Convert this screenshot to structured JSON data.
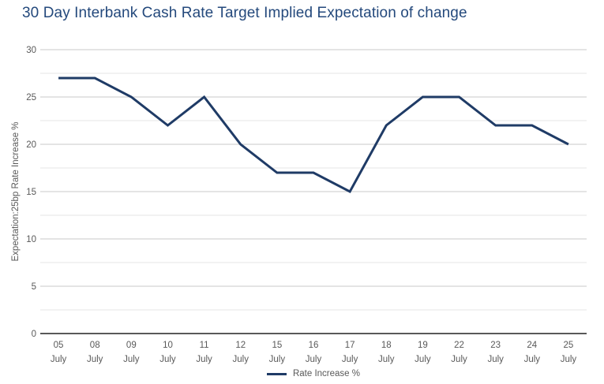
{
  "chart_data": {
    "type": "line",
    "title": "30 Day Interbank Cash Rate Target Implied Expectation of change",
    "ylabel": "Expectation:25bp Rate Increase %",
    "xlabel": "",
    "categories": [
      [
        "05",
        "July"
      ],
      [
        "08",
        "July"
      ],
      [
        "09",
        "July"
      ],
      [
        "10",
        "July"
      ],
      [
        "11",
        "July"
      ],
      [
        "12",
        "July"
      ],
      [
        "15",
        "July"
      ],
      [
        "16",
        "July"
      ],
      [
        "17",
        "July"
      ],
      [
        "18",
        "July"
      ],
      [
        "19",
        "July"
      ],
      [
        "22",
        "July"
      ],
      [
        "23",
        "July"
      ],
      [
        "24",
        "July"
      ],
      [
        "25",
        "July"
      ]
    ],
    "series": [
      {
        "name": "Rate Increase %",
        "values": [
          27,
          27,
          25,
          22,
          25,
          20,
          17,
          17,
          15,
          22,
          25,
          25,
          22,
          22,
          20
        ]
      }
    ],
    "ylim": [
      0,
      30
    ],
    "yticks": [
      0,
      5,
      10,
      15,
      20,
      25,
      30
    ],
    "ytick_step": 5,
    "minor_grid_step": 2.5,
    "grid": true,
    "legend_position": "bottom-center",
    "colors": {
      "title": "#24497c",
      "series_line": "#1f3b66",
      "axis_text": "#595959",
      "grid_major": "#c9c9c9",
      "grid_minor": "#e4e4e4",
      "axis_line": "#595959",
      "background": "#ffffff"
    }
  }
}
